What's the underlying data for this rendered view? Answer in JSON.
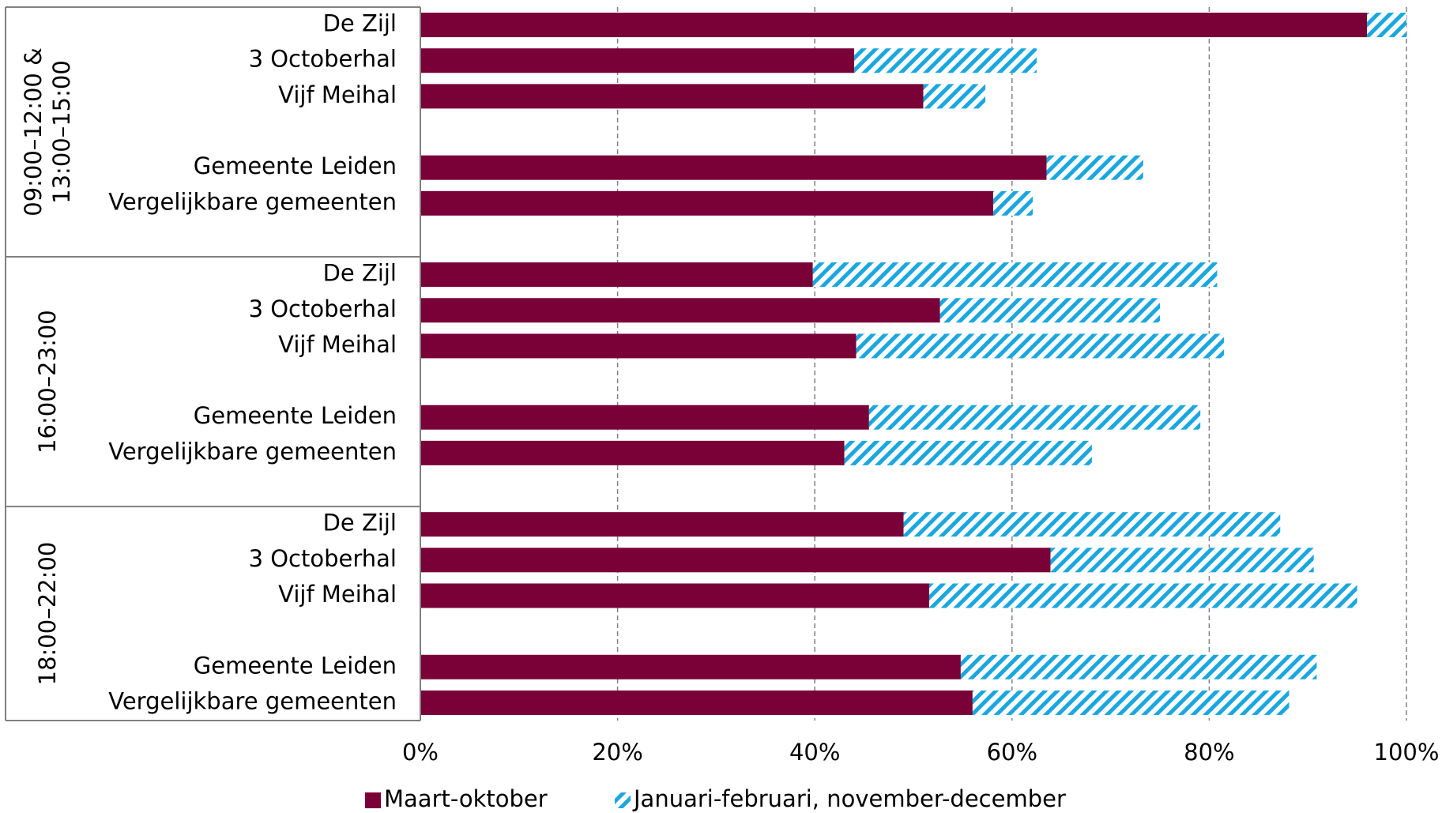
{
  "chart_data": {
    "type": "bar",
    "orientation": "horizontal",
    "stacked": true,
    "categories": [
      "De Zijl",
      "3 Octoberhal",
      "Vijf Meihal",
      null,
      "Gemeente Leiden",
      "Vergelijkbare gemeenten",
      null,
      "De Zijl",
      "3 Octoberhal",
      "Vijf Meihal",
      null,
      "Gemeente Leiden",
      "Vergelijkbare gemeenten",
      null,
      "De Zijl",
      "3 Octoberhal",
      "Vijf Meihal",
      null,
      "Gemeente Leiden",
      "Vergelijkbare gemeenten"
    ],
    "groups": [
      {
        "label": [
          "09:00–12:00 &",
          "13:00–15:00"
        ]
      },
      {
        "label": [
          "16:00–23:00"
        ]
      },
      {
        "label": [
          "18:00–22:00"
        ]
      }
    ],
    "series": [
      {
        "name": "Maart-oktober",
        "color": "#7a0038",
        "pattern": "solid",
        "values": [
          96,
          44,
          51,
          null,
          63.5,
          58.1,
          null,
          39.8,
          52.7,
          44.2,
          null,
          45.5,
          43,
          null,
          49,
          63.9,
          51.6,
          null,
          54.8,
          56
        ]
      },
      {
        "name": "Januari-februari, november-december",
        "color": "#1aa7e0",
        "pattern": "hatch",
        "values": [
          4,
          18.5,
          6.3,
          null,
          9.8,
          4,
          null,
          41,
          22.3,
          37.3,
          null,
          33.6,
          25.1,
          null,
          38.2,
          26.7,
          43.4,
          null,
          36.1,
          32.1
        ]
      }
    ],
    "xlim": [
      0,
      100
    ],
    "xticks": [
      {
        "value": 0,
        "label": "0%"
      },
      {
        "value": 20,
        "label": "20%"
      },
      {
        "value": 40,
        "label": "40%"
      },
      {
        "value": 60,
        "label": "60%"
      },
      {
        "value": 80,
        "label": "80%"
      },
      {
        "value": 100,
        "label": "100%"
      }
    ],
    "grid": true,
    "legend": "bottom"
  }
}
